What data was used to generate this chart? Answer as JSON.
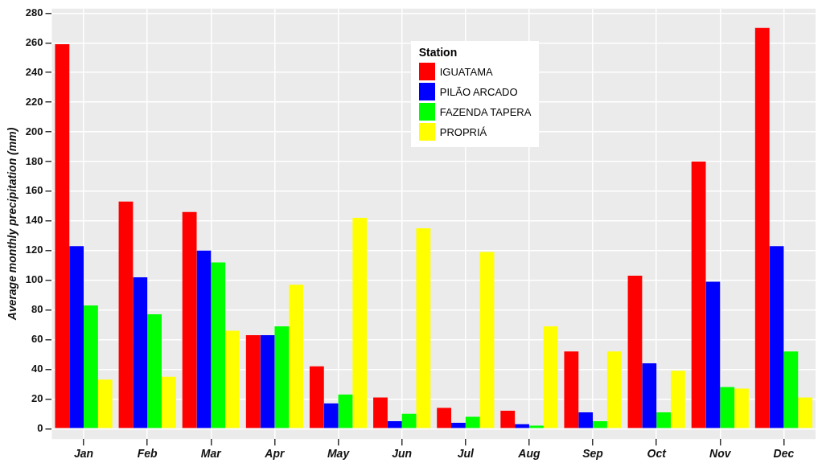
{
  "chart_data": {
    "type": "bar",
    "ylabel": "Average monthly precipitation (mm)",
    "legend_title": "Station",
    "legend": "top",
    "grid": true,
    "categories": [
      "Jan",
      "Feb",
      "Mar",
      "Apr",
      "May",
      "Jun",
      "Jul",
      "Aug",
      "Sep",
      "Oct",
      "Nov",
      "Dec"
    ],
    "ylim": [
      -7,
      283
    ],
    "yticks": [
      0,
      20,
      40,
      60,
      80,
      100,
      120,
      140,
      160,
      180,
      200,
      220,
      240,
      260,
      280
    ],
    "series": [
      {
        "name": "IGUATAMA",
        "color": "#ff0000",
        "values": [
          259,
          153,
          146,
          63,
          42,
          21,
          14,
          12,
          52,
          103,
          180,
          270
        ]
      },
      {
        "name": "PILÃO ARCADO",
        "color": "#0000ff",
        "values": [
          123,
          102,
          120,
          63,
          17,
          5,
          4,
          3,
          11,
          44,
          99,
          123
        ]
      },
      {
        "name": "FAZENDA TAPERA",
        "color": "#00ff00",
        "values": [
          83,
          77,
          112,
          69,
          23,
          10,
          8,
          2,
          5,
          11,
          28,
          52
        ]
      },
      {
        "name": "PROPRIÁ",
        "color": "#ffff00",
        "values": [
          33,
          35,
          66,
          97,
          142,
          135,
          119,
          69,
          52,
          39,
          27,
          21
        ]
      }
    ]
  }
}
